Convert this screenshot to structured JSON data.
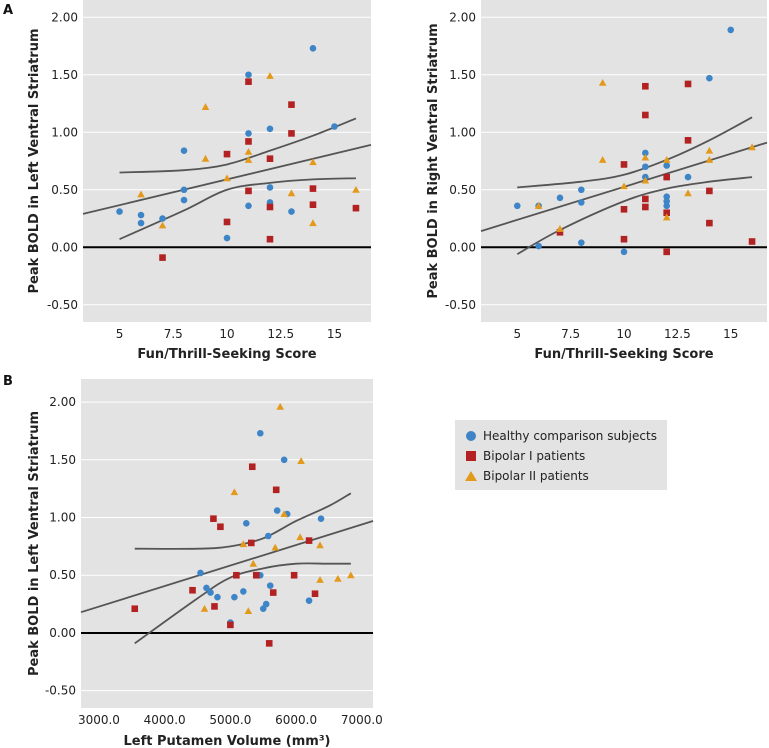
{
  "colors": {
    "healthy": "#3d85c6",
    "bipolar1": "#b22222",
    "bipolar2": "#e39a1c",
    "background": "#e3e3e3",
    "fit": "#555555"
  },
  "legend": [
    {
      "label": "Healthy comparison subjects",
      "series": "healthy",
      "shape": "circle"
    },
    {
      "label": "Bipolar I patients",
      "series": "bipolar1",
      "shape": "square"
    },
    {
      "label": "Bipolar II patients",
      "series": "bipolar2",
      "shape": "triangle"
    }
  ],
  "panel_labels": {
    "a": "A",
    "b": "B"
  },
  "chart_data": [
    {
      "type": "scatter",
      "panel": "A-left",
      "xlabel": "Fun/Thrill-Seeking Score",
      "ylabel": "Peak BOLD in Left Ventral Striatrum",
      "xlim": [
        3.3,
        16.7
      ],
      "ylim": [
        -0.65,
        2.15
      ],
      "xticks": [
        5,
        7.5,
        10,
        12.5,
        15
      ],
      "xtick_labels": [
        "5",
        "7.5",
        "10",
        "12.5",
        "15"
      ],
      "yticks": [
        -0.5,
        0,
        0.5,
        1,
        1.5,
        2
      ],
      "ytick_labels": [
        "-0.50",
        "0.00",
        "0.50",
        "1.00",
        "1.50",
        "2.00"
      ],
      "grid": true,
      "series": [
        {
          "name": "healthy",
          "points": [
            [
              5,
              0.31
            ],
            [
              6,
              0.28
            ],
            [
              6,
              0.21
            ],
            [
              7,
              0.25
            ],
            [
              8,
              0.84
            ],
            [
              8,
              0.5
            ],
            [
              8,
              0.41
            ],
            [
              10,
              0.08
            ],
            [
              11,
              1.5
            ],
            [
              11,
              0.99
            ],
            [
              11,
              0.36
            ],
            [
              12,
              1.03
            ],
            [
              12,
              0.52
            ],
            [
              12,
              0.39
            ],
            [
              13,
              0.31
            ],
            [
              14,
              1.73
            ],
            [
              15,
              1.05
            ]
          ]
        },
        {
          "name": "bipolar1",
          "points": [
            [
              7,
              -0.09
            ],
            [
              10,
              0.81
            ],
            [
              10,
              0.22
            ],
            [
              11,
              1.44
            ],
            [
              11,
              0.92
            ],
            [
              11,
              0.49
            ],
            [
              12,
              0.77
            ],
            [
              12,
              0.35
            ],
            [
              12,
              0.07
            ],
            [
              13,
              1.24
            ],
            [
              13,
              0.99
            ],
            [
              14,
              0.51
            ],
            [
              14,
              0.37
            ],
            [
              16,
              0.34
            ]
          ]
        },
        {
          "name": "bipolar2",
          "points": [
            [
              6,
              0.46
            ],
            [
              7,
              0.19
            ],
            [
              9,
              1.22
            ],
            [
              9,
              0.77
            ],
            [
              10,
              0.6
            ],
            [
              11,
              0.83
            ],
            [
              11,
              0.76
            ],
            [
              12,
              1.49
            ],
            [
              13,
              0.47
            ],
            [
              14,
              0.74
            ],
            [
              14,
              0.21
            ],
            [
              16,
              0.5
            ]
          ]
        }
      ],
      "fit": [
        [
          3.3,
          0.29
        ],
        [
          16.7,
          0.89
        ]
      ],
      "ci_upper": [
        [
          5,
          0.65
        ],
        [
          8,
          0.67
        ],
        [
          10,
          0.72
        ],
        [
          12,
          0.84
        ],
        [
          14,
          0.97
        ],
        [
          16,
          1.12
        ]
      ],
      "ci_lower": [
        [
          5,
          0.07
        ],
        [
          8,
          0.32
        ],
        [
          10,
          0.5
        ],
        [
          12,
          0.56
        ],
        [
          14,
          0.59
        ],
        [
          16,
          0.6
        ]
      ]
    },
    {
      "type": "scatter",
      "panel": "A-right",
      "xlabel": "Fun/Thrill-Seeking Score",
      "ylabel": "Peak BOLD in Right Ventral Striatrum",
      "xlim": [
        3.3,
        16.7
      ],
      "ylim": [
        -0.65,
        2.15
      ],
      "xticks": [
        5,
        7.5,
        10,
        12.5,
        15
      ],
      "xtick_labels": [
        "5",
        "7.5",
        "10",
        "12.5",
        "15"
      ],
      "yticks": [
        -0.5,
        0,
        0.5,
        1,
        1.5,
        2
      ],
      "ytick_labels": [
        "-0.50",
        "0.00",
        "0.50",
        "1.00",
        "1.50",
        "2.00"
      ],
      "grid": true,
      "series": [
        {
          "name": "healthy",
          "points": [
            [
              5,
              0.36
            ],
            [
              6,
              0.36
            ],
            [
              6,
              0.01
            ],
            [
              7,
              0.43
            ],
            [
              8,
              0.5
            ],
            [
              8,
              0.39
            ],
            [
              8,
              0.04
            ],
            [
              10,
              -0.04
            ],
            [
              11,
              0.82
            ],
            [
              11,
              0.7
            ],
            [
              11,
              0.61
            ],
            [
              12,
              0.71
            ],
            [
              12,
              0.44
            ],
            [
              12,
              0.4
            ],
            [
              12,
              0.36
            ],
            [
              13,
              0.61
            ],
            [
              14,
              1.47
            ],
            [
              15,
              1.89
            ]
          ]
        },
        {
          "name": "bipolar1",
          "points": [
            [
              7,
              0.13
            ],
            [
              10,
              0.72
            ],
            [
              10,
              0.33
            ],
            [
              10,
              0.07
            ],
            [
              11,
              1.4
            ],
            [
              11,
              1.15
            ],
            [
              11,
              0.42
            ],
            [
              11,
              0.35
            ],
            [
              12,
              0.61
            ],
            [
              12,
              0.3
            ],
            [
              12,
              -0.04
            ],
            [
              13,
              1.42
            ],
            [
              13,
              0.93
            ],
            [
              14,
              0.49
            ],
            [
              14,
              0.21
            ],
            [
              16,
              0.05
            ]
          ]
        },
        {
          "name": "bipolar2",
          "points": [
            [
              6,
              0.36
            ],
            [
              7,
              0.16
            ],
            [
              9,
              1.43
            ],
            [
              9,
              0.76
            ],
            [
              10,
              0.53
            ],
            [
              11,
              0.78
            ],
            [
              11,
              0.58
            ],
            [
              12,
              0.76
            ],
            [
              12,
              0.26
            ],
            [
              13,
              0.47
            ],
            [
              14,
              0.84
            ],
            [
              14,
              0.76
            ],
            [
              16,
              0.87
            ]
          ]
        }
      ],
      "fit": [
        [
          3.3,
          0.14
        ],
        [
          16.7,
          0.91
        ]
      ],
      "ci_upper": [
        [
          5,
          0.52
        ],
        [
          8,
          0.57
        ],
        [
          10,
          0.63
        ],
        [
          12,
          0.76
        ],
        [
          14,
          0.93
        ],
        [
          16,
          1.13
        ]
      ],
      "ci_lower": [
        [
          5,
          -0.06
        ],
        [
          7,
          0.15
        ],
        [
          10,
          0.4
        ],
        [
          12,
          0.51
        ],
        [
          14,
          0.57
        ],
        [
          16,
          0.61
        ]
      ]
    },
    {
      "type": "scatter",
      "panel": "B",
      "xlabel": "Left Putamen Volume (mm³)",
      "ylabel": "Peak BOLD in Left Ventral Striatrum",
      "xlim": [
        2727,
        7170
      ],
      "ylim": [
        -0.65,
        2.2
      ],
      "xticks": [
        3000,
        4000,
        5000,
        6000,
        7000
      ],
      "xtick_labels": [
        "3000.0",
        "4000.0",
        "5000.0",
        "6000.0",
        "7000.0"
      ],
      "yticks": [
        -0.5,
        0,
        0.5,
        1,
        1.5,
        2
      ],
      "ytick_labels": [
        "-0.50",
        "0.00",
        "0.50",
        "1.00",
        "1.50",
        "2.00"
      ],
      "grid": true,
      "series": [
        {
          "name": "healthy",
          "points": [
            [
              5455,
              1.73
            ],
            [
              5818,
              1.5
            ],
            [
              5712,
              1.06
            ],
            [
              5864,
              1.03
            ],
            [
              6379,
              0.99
            ],
            [
              5242,
              0.95
            ],
            [
              5576,
              0.84
            ],
            [
              4545,
              0.52
            ],
            [
              5455,
              0.5
            ],
            [
              4636,
              0.39
            ],
            [
              4697,
              0.35
            ],
            [
              4803,
              0.31
            ],
            [
              5061,
              0.31
            ],
            [
              5197,
              0.36
            ],
            [
              5606,
              0.41
            ],
            [
              5545,
              0.25
            ],
            [
              5500,
              0.21
            ],
            [
              6197,
              0.28
            ],
            [
              5000,
              0.09
            ]
          ]
        },
        {
          "name": "bipolar1",
          "points": [
            [
              5333,
              1.44
            ],
            [
              5697,
              1.24
            ],
            [
              4742,
              0.99
            ],
            [
              4848,
              0.92
            ],
            [
              5318,
              0.78
            ],
            [
              6197,
              0.8
            ],
            [
              5091,
              0.5
            ],
            [
              5394,
              0.5
            ],
            [
              5970,
              0.5
            ],
            [
              4424,
              0.37
            ],
            [
              5652,
              0.35
            ],
            [
              6288,
              0.34
            ],
            [
              3545,
              0.21
            ],
            [
              4758,
              0.23
            ],
            [
              5000,
              0.07
            ],
            [
              5591,
              -0.09
            ]
          ]
        },
        {
          "name": "bipolar2",
          "points": [
            [
              5758,
              1.96
            ],
            [
              6076,
              1.49
            ],
            [
              5061,
              1.22
            ],
            [
              5818,
              1.03
            ],
            [
              5197,
              0.77
            ],
            [
              5682,
              0.74
            ],
            [
              6061,
              0.83
            ],
            [
              6364,
              0.76
            ],
            [
              5348,
              0.6
            ],
            [
              6364,
              0.46
            ],
            [
              6636,
              0.47
            ],
            [
              6833,
              0.5
            ],
            [
              4606,
              0.21
            ],
            [
              5273,
              0.19
            ]
          ]
        }
      ],
      "fit": [
        [
          2727,
          0.18
        ],
        [
          7170,
          0.97
        ]
      ],
      "ci_upper": [
        [
          3545,
          0.73
        ],
        [
          4500,
          0.73
        ],
        [
          5000,
          0.75
        ],
        [
          5500,
          0.82
        ],
        [
          6000,
          0.97
        ],
        [
          6500,
          1.1
        ],
        [
          6833,
          1.21
        ]
      ],
      "ci_lower": [
        [
          3545,
          -0.09
        ],
        [
          4500,
          0.3
        ],
        [
          5000,
          0.48
        ],
        [
          5500,
          0.56
        ],
        [
          6000,
          0.6
        ],
        [
          6500,
          0.6
        ],
        [
          6833,
          0.6
        ]
      ]
    }
  ]
}
